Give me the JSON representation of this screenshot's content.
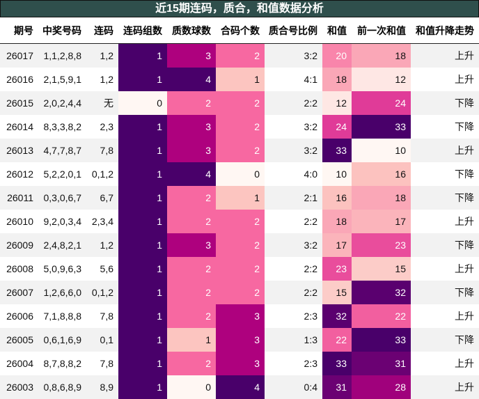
{
  "title": "近15期连码，质合，和值数据分析",
  "headers": [
    "期号",
    "中奖号码",
    "连码",
    "连码组数",
    "质数球数",
    "合码个数",
    "质合号比例",
    "和值",
    "前一次和值",
    "和值升降走势"
  ],
  "colormap": [
    "#fff7f3",
    "#fde0dd",
    "#fcc5c0",
    "#fa9fb5",
    "#f768a1",
    "#dd3497",
    "#ae017e",
    "#7a0177",
    "#49006a"
  ],
  "rows": [
    [
      "26017",
      "1,1,2,8,8",
      "1,2",
      1,
      3,
      2,
      "3:2",
      20,
      18,
      "上升"
    ],
    [
      "26016",
      "2,1,5,9,1",
      "1,2",
      1,
      4,
      1,
      "4:1",
      18,
      12,
      "上升"
    ],
    [
      "26015",
      "2,0,2,4,4",
      "无",
      0,
      2,
      2,
      "2:2",
      12,
      24,
      "下降"
    ],
    [
      "26014",
      "8,3,3,8,2",
      "2,3",
      1,
      3,
      2,
      "3:2",
      24,
      33,
      "下降"
    ],
    [
      "26013",
      "4,7,7,8,7",
      "7,8",
      1,
      3,
      2,
      "3:2",
      33,
      10,
      "上升"
    ],
    [
      "26012",
      "5,2,2,0,1",
      "0,1,2",
      1,
      4,
      0,
      "4:0",
      10,
      16,
      "下降"
    ],
    [
      "26011",
      "0,3,0,6,7",
      "6,7",
      1,
      2,
      1,
      "2:1",
      16,
      18,
      "下降"
    ],
    [
      "26010",
      "9,2,0,3,4",
      "2,3,4",
      1,
      2,
      2,
      "2:2",
      18,
      17,
      "上升"
    ],
    [
      "26009",
      "2,4,8,2,1",
      "1,2",
      1,
      3,
      2,
      "3:2",
      17,
      23,
      "下降"
    ],
    [
      "26008",
      "5,0,9,6,3",
      "5,6",
      1,
      2,
      2,
      "2:2",
      23,
      15,
      "上升"
    ],
    [
      "26007",
      "1,2,6,6,0",
      "0,1,2",
      1,
      2,
      2,
      "2:2",
      15,
      32,
      "下降"
    ],
    [
      "26006",
      "7,1,8,8,8",
      "7,8",
      1,
      2,
      3,
      "2:3",
      32,
      22,
      "上升"
    ],
    [
      "26005",
      "0,6,1,6,9",
      "0,1",
      1,
      1,
      3,
      "1:3",
      22,
      33,
      "下降"
    ],
    [
      "26004",
      "8,7,8,8,2",
      "7,8",
      1,
      2,
      3,
      "2:3",
      33,
      31,
      "上升"
    ],
    [
      "26003",
      "0,8,6,8,9",
      "8,9",
      1,
      0,
      4,
      "0:4",
      31,
      28,
      "上升"
    ]
  ]
}
